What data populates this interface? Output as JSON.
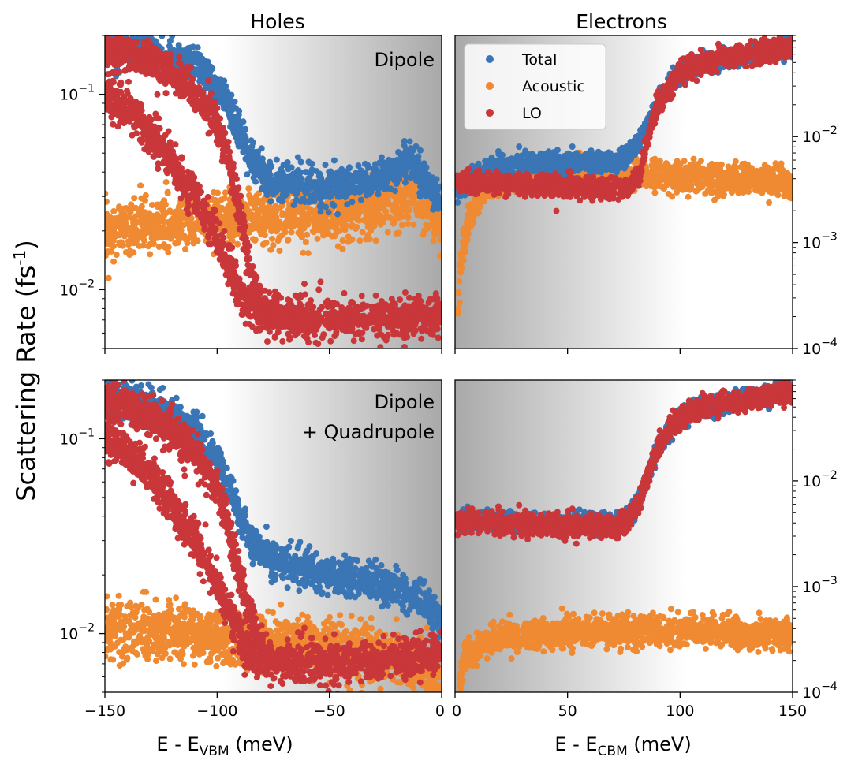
{
  "figure": {
    "ylabel_main": "Scattering Rate (fs",
    "ylabel_sup": "-1",
    "ylabel_close": ")"
  },
  "colors": {
    "total": "#3a75b5",
    "acoustic": "#ef8a33",
    "lo": "#c9373a"
  },
  "legend": {
    "items": [
      {
        "key": "total",
        "label": "Total"
      },
      {
        "key": "acoustic",
        "label": "Acoustic"
      },
      {
        "key": "lo",
        "label": "LO"
      }
    ],
    "placement": "upper-left of top-right panel"
  },
  "chart_data": [
    {
      "type": "scatter",
      "panel": "top-left",
      "title": "Holes",
      "annotation": [
        "Dipole"
      ],
      "xlim": [
        -150,
        0
      ],
      "ylim": [
        0.005,
        0.2
      ],
      "yscale": "log",
      "y_ticks": [
        {
          "mant": "10",
          "exp": "−1",
          "value": 0.1
        },
        {
          "mant": "10",
          "exp": "−2",
          "value": 0.01
        }
      ],
      "shading": "white to grey toward band edge (right)",
      "series": [
        {
          "name": "Total",
          "key": "total",
          "points": [
            [
              -150,
              0.18
            ],
            [
              -140,
              0.17
            ],
            [
              -130,
              0.16
            ],
            [
              -120,
              0.15
            ],
            [
              -110,
              0.14
            ],
            [
              -100,
              0.11
            ],
            [
              -95,
              0.09
            ],
            [
              -90,
              0.065
            ],
            [
              -85,
              0.048
            ],
            [
              -80,
              0.04
            ],
            [
              -75,
              0.036
            ],
            [
              -70,
              0.035
            ],
            [
              -60,
              0.034
            ],
            [
              -50,
              0.034
            ],
            [
              -40,
              0.035
            ],
            [
              -30,
              0.037
            ],
            [
              -20,
              0.04
            ],
            [
              -15,
              0.046
            ],
            [
              -10,
              0.04
            ],
            [
              -5,
              0.034
            ],
            [
              0,
              0.027
            ]
          ]
        },
        {
          "name": "Acoustic",
          "key": "acoustic",
          "points": [
            [
              -150,
              0.02
            ],
            [
              -130,
              0.021
            ],
            [
              -110,
              0.022
            ],
            [
              -90,
              0.023
            ],
            [
              -70,
              0.024
            ],
            [
              -50,
              0.025
            ],
            [
              -30,
              0.027
            ],
            [
              -15,
              0.031
            ],
            [
              -5,
              0.028
            ],
            [
              0,
              0.02
            ]
          ]
        },
        {
          "name": "LO",
          "key": "lo",
          "points": [
            [
              -150,
              0.17
            ],
            [
              -140,
              0.16
            ],
            [
              -130,
              0.15
            ],
            [
              -120,
              0.13
            ],
            [
              -110,
              0.1
            ],
            [
              -100,
              0.07
            ],
            [
              -95,
              0.045
            ],
            [
              -90,
              0.025
            ],
            [
              -86,
              0.013
            ],
            [
              -82,
              0.009
            ],
            [
              -78,
              0.0075
            ],
            [
              -70,
              0.0071
            ],
            [
              -50,
              0.0071
            ],
            [
              -30,
              0.0072
            ],
            [
              -10,
              0.0073
            ],
            [
              0,
              0.0074
            ]
          ]
        },
        {
          "name": "LO lower branch",
          "key": "lo",
          "points": [
            [
              -150,
              0.1
            ],
            [
              -140,
              0.085
            ],
            [
              -130,
              0.065
            ],
            [
              -120,
              0.045
            ],
            [
              -110,
              0.03
            ],
            [
              -100,
              0.018
            ],
            [
              -92,
              0.011
            ],
            [
              -86,
              0.0085
            ],
            [
              -80,
              0.0075
            ]
          ]
        }
      ]
    },
    {
      "type": "scatter",
      "panel": "top-right",
      "title": "Electrons",
      "xlim": [
        0,
        150
      ],
      "ylim": [
        0.0001,
        0.09
      ],
      "yscale": "log",
      "y_ticks": [
        {
          "mant": "10",
          "exp": "−2",
          "value": 0.01
        },
        {
          "mant": "10",
          "exp": "−3",
          "value": 0.001
        },
        {
          "mant": "10",
          "exp": "−4",
          "value": 0.0001
        }
      ],
      "shading": "grey to white away from band edge (left)",
      "series": [
        {
          "name": "Total",
          "key": "total",
          "points": [
            [
              1,
              0.003
            ],
            [
              5,
              0.0035
            ],
            [
              10,
              0.0045
            ],
            [
              20,
              0.0052
            ],
            [
              30,
              0.0056
            ],
            [
              40,
              0.0057
            ],
            [
              50,
              0.0058
            ],
            [
              60,
              0.0057
            ],
            [
              70,
              0.0058
            ],
            [
              75,
              0.006
            ],
            [
              80,
              0.0075
            ],
            [
              85,
              0.012
            ],
            [
              90,
              0.02
            ],
            [
              95,
              0.03
            ],
            [
              100,
              0.04
            ],
            [
              110,
              0.05
            ],
            [
              120,
              0.055
            ],
            [
              130,
              0.06
            ],
            [
              140,
              0.065
            ],
            [
              150,
              0.07
            ]
          ]
        },
        {
          "name": "Acoustic",
          "key": "acoustic",
          "points": [
            [
              1,
              0.0002
            ],
            [
              3,
              0.0008
            ],
            [
              6,
              0.0015
            ],
            [
              10,
              0.0025
            ],
            [
              15,
              0.0035
            ],
            [
              25,
              0.0042
            ],
            [
              40,
              0.0045
            ],
            [
              60,
              0.0045
            ],
            [
              80,
              0.0045
            ],
            [
              100,
              0.0042
            ],
            [
              120,
              0.004
            ],
            [
              140,
              0.0038
            ],
            [
              150,
              0.0035
            ]
          ]
        },
        {
          "name": "LO",
          "key": "lo",
          "points": [
            [
              1,
              0.0036
            ],
            [
              10,
              0.0036
            ],
            [
              20,
              0.0036
            ],
            [
              30,
              0.0035
            ],
            [
              40,
              0.0035
            ],
            [
              50,
              0.0034
            ],
            [
              60,
              0.0033
            ],
            [
              70,
              0.0033
            ],
            [
              78,
              0.0035
            ],
            [
              82,
              0.0045
            ],
            [
              86,
              0.01
            ],
            [
              90,
              0.02
            ],
            [
              95,
              0.03
            ],
            [
              100,
              0.04
            ],
            [
              110,
              0.05
            ],
            [
              120,
              0.055
            ],
            [
              130,
              0.06
            ],
            [
              140,
              0.065
            ],
            [
              150,
              0.07
            ]
          ]
        }
      ]
    },
    {
      "type": "scatter",
      "panel": "bottom-left",
      "annotation": [
        "Dipole",
        "+ Quadrupole"
      ],
      "xlabel_main": "E - E",
      "xlabel_sub": "VBM",
      "xlabel_unit": " (meV)",
      "xlim": [
        -150,
        0
      ],
      "ylim": [
        0.005,
        0.2
      ],
      "yscale": "log",
      "x_ticks": [
        {
          "label": "−150",
          "value": -150
        },
        {
          "label": "−100",
          "value": -100
        },
        {
          "label": "−50",
          "value": -50
        },
        {
          "label": "0",
          "value": 0
        }
      ],
      "y_ticks": [
        {
          "mant": "10",
          "exp": "−1",
          "value": 0.1
        },
        {
          "mant": "10",
          "exp": "−2",
          "value": 0.01
        }
      ],
      "shading": "white to grey toward band edge (right)",
      "series": [
        {
          "name": "Total",
          "key": "total",
          "points": [
            [
              -150,
              0.17
            ],
            [
              -140,
              0.16
            ],
            [
              -130,
              0.15
            ],
            [
              -120,
              0.13
            ],
            [
              -110,
              0.11
            ],
            [
              -100,
              0.08
            ],
            [
              -95,
              0.055
            ],
            [
              -90,
              0.04
            ],
            [
              -85,
              0.03
            ],
            [
              -80,
              0.026
            ],
            [
              -70,
              0.023
            ],
            [
              -60,
              0.021
            ],
            [
              -50,
              0.02
            ],
            [
              -40,
              0.019
            ],
            [
              -30,
              0.018
            ],
            [
              -20,
              0.017
            ],
            [
              -10,
              0.015
            ],
            [
              -5,
              0.013
            ],
            [
              0,
              0.012
            ]
          ]
        },
        {
          "name": "Acoustic",
          "key": "acoustic",
          "points": [
            [
              -150,
              0.0105
            ],
            [
              -130,
              0.0102
            ],
            [
              -110,
              0.01
            ],
            [
              -90,
              0.0095
            ],
            [
              -70,
              0.009
            ],
            [
              -50,
              0.0085
            ],
            [
              -30,
              0.008
            ],
            [
              -20,
              0.0075
            ],
            [
              -10,
              0.007
            ],
            [
              -5,
              0.006
            ],
            [
              0,
              0.0052
            ]
          ]
        },
        {
          "name": "LO",
          "key": "lo",
          "points": [
            [
              -150,
              0.16
            ],
            [
              -140,
              0.15
            ],
            [
              -130,
              0.13
            ],
            [
              -120,
              0.11
            ],
            [
              -110,
              0.085
            ],
            [
              -100,
              0.055
            ],
            [
              -95,
              0.035
            ],
            [
              -90,
              0.02
            ],
            [
              -85,
              0.012
            ],
            [
              -80,
              0.008
            ],
            [
              -75,
              0.007
            ],
            [
              -60,
              0.0071
            ],
            [
              -40,
              0.0072
            ],
            [
              -20,
              0.0074
            ],
            [
              -10,
              0.0076
            ],
            [
              0,
              0.008
            ]
          ]
        },
        {
          "name": "LO lower branch",
          "key": "lo",
          "points": [
            [
              -150,
              0.1
            ],
            [
              -140,
              0.085
            ],
            [
              -130,
              0.065
            ],
            [
              -120,
              0.045
            ],
            [
              -110,
              0.03
            ],
            [
              -100,
              0.018
            ],
            [
              -92,
              0.011
            ],
            [
              -86,
              0.008
            ],
            [
              -80,
              0.007
            ]
          ]
        }
      ]
    },
    {
      "type": "scatter",
      "panel": "bottom-right",
      "xlabel_main": "E - E",
      "xlabel_sub": "CBM",
      "xlabel_unit": " (meV)",
      "xlim": [
        0,
        150
      ],
      "ylim": [
        0.0001,
        0.09
      ],
      "yscale": "log",
      "x_ticks": [
        {
          "label": "0",
          "value": 0
        },
        {
          "label": "50",
          "value": 50
        },
        {
          "label": "100",
          "value": 100
        },
        {
          "label": "150",
          "value": 150
        }
      ],
      "y_ticks": [
        {
          "mant": "10",
          "exp": "−2",
          "value": 0.01
        },
        {
          "mant": "10",
          "exp": "−3",
          "value": 0.001
        },
        {
          "mant": "10",
          "exp": "−4",
          "value": 0.0001
        }
      ],
      "shading": "grey to white away from band edge (left)",
      "series": [
        {
          "name": "Total",
          "key": "total",
          "points": [
            [
              1,
              0.0042
            ],
            [
              10,
              0.0042
            ],
            [
              20,
              0.0041
            ],
            [
              30,
              0.0041
            ],
            [
              40,
              0.004
            ],
            [
              50,
              0.004
            ],
            [
              60,
              0.004
            ],
            [
              70,
              0.004
            ],
            [
              76,
              0.0042
            ],
            [
              80,
              0.0055
            ],
            [
              85,
              0.01
            ],
            [
              90,
              0.02
            ],
            [
              95,
              0.03
            ],
            [
              100,
              0.04
            ],
            [
              110,
              0.05
            ],
            [
              120,
              0.055
            ],
            [
              130,
              0.06
            ],
            [
              140,
              0.065
            ],
            [
              150,
              0.07
            ]
          ]
        },
        {
          "name": "Acoustic",
          "key": "acoustic",
          "points": [
            [
              2,
              0.00012
            ],
            [
              4,
              0.0002
            ],
            [
              8,
              0.00025
            ],
            [
              12,
              0.0003
            ],
            [
              20,
              0.00034
            ],
            [
              40,
              0.00036
            ],
            [
              60,
              0.00037
            ],
            [
              80,
              0.00038
            ],
            [
              100,
              0.00038
            ],
            [
              120,
              0.00037
            ],
            [
              140,
              0.00036
            ],
            [
              150,
              0.00035
            ]
          ]
        },
        {
          "name": "LO",
          "key": "lo",
          "points": [
            [
              1,
              0.004
            ],
            [
              10,
              0.004
            ],
            [
              20,
              0.0039
            ],
            [
              30,
              0.0039
            ],
            [
              40,
              0.0038
            ],
            [
              50,
              0.0038
            ],
            [
              60,
              0.0037
            ],
            [
              70,
              0.0037
            ],
            [
              77,
              0.004
            ],
            [
              81,
              0.0055
            ],
            [
              85,
              0.01
            ],
            [
              90,
              0.02
            ],
            [
              95,
              0.03
            ],
            [
              100,
              0.04
            ],
            [
              110,
              0.05
            ],
            [
              120,
              0.055
            ],
            [
              130,
              0.06
            ],
            [
              140,
              0.065
            ],
            [
              150,
              0.07
            ]
          ]
        }
      ]
    }
  ]
}
